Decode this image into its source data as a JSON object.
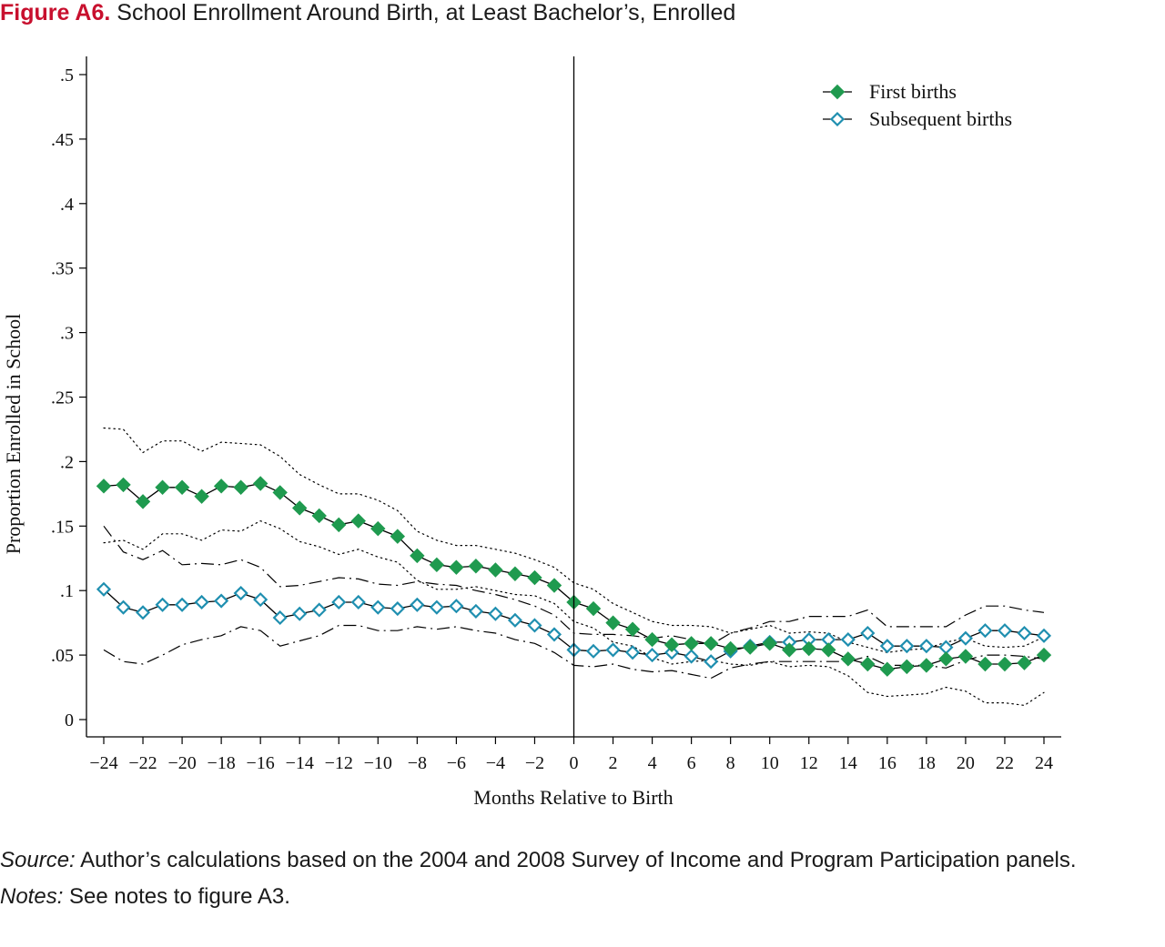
{
  "figure": {
    "label": "Figure A6.",
    "title": "School Enrollment Around Birth, at Least Bachelor’s, Enrolled"
  },
  "caption": {
    "source_label": "Source:",
    "source_text": "Author’s calculations based on the 2004 and 2008 Survey of Income and Program Participation panels.",
    "notes_label": "Notes:",
    "notes_text": "See notes to figure A3."
  },
  "chart_data": {
    "type": "line",
    "title": "",
    "xlabel": "Months Relative to Birth",
    "ylabel": "Proportion Enrolled in School",
    "xlim": [
      -24,
      24
    ],
    "ylim": [
      0,
      0.5
    ],
    "x_ticks": [
      -24,
      -22,
      -20,
      -18,
      -16,
      -14,
      -12,
      -10,
      -8,
      -6,
      -4,
      -2,
      0,
      2,
      4,
      6,
      8,
      10,
      12,
      14,
      16,
      18,
      20,
      22,
      24
    ],
    "x_tick_labels": [
      "−24",
      "−22",
      "−20",
      "−18",
      "−16",
      "−14",
      "−12",
      "−10",
      "−8",
      "−6",
      "−4",
      "−2",
      "0",
      "2",
      "4",
      "6",
      "8",
      "10",
      "12",
      "14",
      "16",
      "18",
      "20",
      "22",
      "24"
    ],
    "y_ticks": [
      0,
      0.05,
      0.1,
      0.15,
      0.2,
      0.25,
      0.3,
      0.35,
      0.4,
      0.45,
      0.5
    ],
    "y_tick_labels": [
      "0",
      ".05",
      ".1",
      ".15",
      ".2",
      ".25",
      ".3",
      ".35",
      ".4",
      ".45",
      ".5"
    ],
    "vertical_line_x": 0,
    "grid": false,
    "legend_position": "top-right",
    "x": [
      -24,
      -23,
      -22,
      -21,
      -20,
      -19,
      -18,
      -17,
      -16,
      -15,
      -14,
      -13,
      -12,
      -11,
      -10,
      -9,
      -8,
      -7,
      -6,
      -5,
      -4,
      -3,
      -2,
      -1,
      0,
      1,
      2,
      3,
      4,
      5,
      6,
      7,
      8,
      9,
      10,
      11,
      12,
      13,
      14,
      15,
      16,
      17,
      18,
      19,
      20,
      21,
      22,
      23,
      24
    ],
    "series": [
      {
        "name": "First births",
        "marker": "filled-diamond",
        "color": "#1f9a4f",
        "values": [
          0.181,
          0.182,
          0.169,
          0.18,
          0.18,
          0.173,
          0.181,
          0.18,
          0.183,
          0.176,
          0.164,
          0.158,
          0.151,
          0.154,
          0.148,
          0.142,
          0.127,
          0.12,
          0.118,
          0.119,
          0.116,
          0.113,
          0.11,
          0.104,
          0.091,
          0.086,
          0.075,
          0.07,
          0.062,
          0.058,
          0.059,
          0.059,
          0.055,
          0.056,
          0.059,
          0.054,
          0.055,
          0.054,
          0.047,
          0.043,
          0.039,
          0.041,
          0.042,
          0.047,
          0.049,
          0.043,
          0.043,
          0.044,
          0.05
        ],
        "ci_upper": [
          0.226,
          0.225,
          0.207,
          0.216,
          0.216,
          0.208,
          0.215,
          0.214,
          0.213,
          0.204,
          0.19,
          0.182,
          0.175,
          0.175,
          0.17,
          0.162,
          0.146,
          0.139,
          0.135,
          0.135,
          0.132,
          0.129,
          0.124,
          0.118,
          0.106,
          0.101,
          0.09,
          0.083,
          0.076,
          0.073,
          0.073,
          0.072,
          0.067,
          0.07,
          0.073,
          0.067,
          0.068,
          0.067,
          0.06,
          0.056,
          0.052,
          0.054,
          0.055,
          0.06,
          0.063,
          0.057,
          0.056,
          0.057,
          0.064
        ],
        "ci_lower": [
          0.137,
          0.139,
          0.132,
          0.144,
          0.144,
          0.139,
          0.147,
          0.146,
          0.154,
          0.148,
          0.138,
          0.134,
          0.128,
          0.132,
          0.126,
          0.122,
          0.108,
          0.101,
          0.101,
          0.103,
          0.1,
          0.097,
          0.096,
          0.09,
          0.076,
          0.071,
          0.06,
          0.057,
          0.048,
          0.043,
          0.045,
          0.046,
          0.043,
          0.042,
          0.045,
          0.041,
          0.042,
          0.041,
          0.034,
          0.021,
          0.018,
          0.019,
          0.02,
          0.025,
          0.022,
          0.013,
          0.013,
          0.011,
          0.021
        ]
      },
      {
        "name": "Subsequent births",
        "marker": "hollow-diamond",
        "color": "#1f8fb0",
        "values": [
          0.101,
          0.087,
          0.083,
          0.089,
          0.089,
          0.091,
          0.092,
          0.098,
          0.093,
          0.079,
          0.082,
          0.085,
          0.091,
          0.091,
          0.087,
          0.086,
          0.089,
          0.087,
          0.088,
          0.084,
          0.082,
          0.077,
          0.073,
          0.066,
          0.054,
          0.053,
          0.054,
          0.052,
          0.05,
          0.052,
          0.049,
          0.045,
          0.053,
          0.057,
          0.06,
          0.06,
          0.062,
          0.062,
          0.062,
          0.067,
          0.057,
          0.057,
          0.057,
          0.056,
          0.063,
          0.069,
          0.069,
          0.067,
          0.065
        ],
        "ci_upper": [
          0.15,
          0.13,
          0.124,
          0.131,
          0.12,
          0.121,
          0.12,
          0.124,
          0.118,
          0.103,
          0.104,
          0.107,
          0.11,
          0.109,
          0.105,
          0.104,
          0.107,
          0.105,
          0.104,
          0.1,
          0.097,
          0.093,
          0.088,
          0.081,
          0.067,
          0.066,
          0.066,
          0.065,
          0.063,
          0.065,
          0.062,
          0.058,
          0.067,
          0.071,
          0.076,
          0.076,
          0.08,
          0.08,
          0.08,
          0.085,
          0.072,
          0.072,
          0.072,
          0.072,
          0.081,
          0.088,
          0.088,
          0.085,
          0.083
        ],
        "ci_lower": [
          0.054,
          0.045,
          0.043,
          0.05,
          0.058,
          0.062,
          0.065,
          0.072,
          0.069,
          0.057,
          0.061,
          0.065,
          0.073,
          0.073,
          0.069,
          0.069,
          0.072,
          0.07,
          0.072,
          0.069,
          0.067,
          0.062,
          0.059,
          0.052,
          0.042,
          0.041,
          0.043,
          0.039,
          0.037,
          0.038,
          0.035,
          0.032,
          0.04,
          0.043,
          0.045,
          0.045,
          0.045,
          0.045,
          0.045,
          0.049,
          0.042,
          0.042,
          0.042,
          0.04,
          0.046,
          0.05,
          0.05,
          0.049,
          0.047
        ]
      }
    ]
  }
}
